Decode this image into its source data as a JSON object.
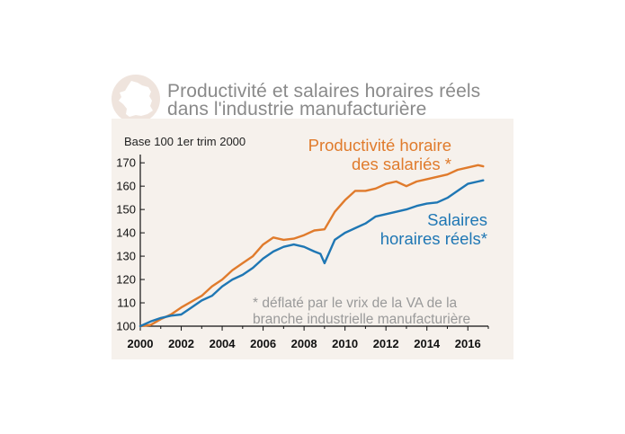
{
  "header": {
    "icon": "france-map-icon",
    "title_lines": [
      "Productivité et salaires horaires réels",
      "dans l'industrie manufacturière"
    ]
  },
  "chart_data": {
    "type": "line",
    "base_label": "Base 100 1er trim 2000",
    "xlim": [
      2000,
      2017
    ],
    "ylim": [
      100,
      172
    ],
    "x_ticks": [
      2000,
      2002,
      2004,
      2006,
      2008,
      2010,
      2012,
      2014,
      2016
    ],
    "y_ticks": [
      100,
      110,
      120,
      130,
      140,
      150,
      160,
      170
    ],
    "grid": false,
    "series": [
      {
        "name_lines": [
          "Productivité horaire",
          "des salariés *"
        ],
        "color": "#e07b2c",
        "x": [
          2000.0,
          2000.5,
          2001.0,
          2001.5,
          2002.0,
          2002.5,
          2003.0,
          2003.5,
          2004.0,
          2004.5,
          2005.0,
          2005.5,
          2006.0,
          2006.5,
          2007.0,
          2007.5,
          2008.0,
          2008.5,
          2009.0,
          2009.5,
          2010.0,
          2010.5,
          2011.0,
          2011.5,
          2012.0,
          2012.5,
          2013.0,
          2013.5,
          2014.0,
          2014.5,
          2015.0,
          2015.5,
          2016.0,
          2016.5,
          2016.75
        ],
        "y": [
          100,
          100.5,
          103,
          105,
          108,
          110.5,
          113,
          117,
          120,
          124,
          127,
          130,
          135,
          138,
          137,
          137.5,
          139,
          141,
          141.5,
          149,
          154,
          158,
          158,
          159,
          161,
          162,
          160,
          162,
          163,
          164,
          165,
          167,
          168,
          169,
          168.5
        ]
      },
      {
        "name_lines": [
          "Salaires",
          "horaires réels*"
        ],
        "color": "#1f77b4",
        "x": [
          2000.0,
          2000.5,
          2001.0,
          2001.5,
          2002.0,
          2002.5,
          2003.0,
          2003.5,
          2004.0,
          2004.5,
          2005.0,
          2005.5,
          2006.0,
          2006.5,
          2007.0,
          2007.5,
          2008.0,
          2008.5,
          2008.8,
          2009.0,
          2009.5,
          2010.0,
          2010.5,
          2011.0,
          2011.5,
          2012.0,
          2012.5,
          2013.0,
          2013.5,
          2014.0,
          2014.5,
          2015.0,
          2015.5,
          2016.0,
          2016.5,
          2016.75
        ],
        "y": [
          100,
          102,
          103.5,
          104.5,
          105,
          108,
          111,
          113,
          117,
          120,
          122,
          125,
          129,
          132,
          134,
          135,
          134,
          132,
          131,
          127,
          137,
          140,
          142,
          144,
          147,
          148,
          149,
          150,
          151.5,
          152.5,
          153,
          155,
          158,
          161,
          162,
          162.5
        ]
      }
    ],
    "note_lines": [
      "* déflaté par le vrix de la VA de la",
      "branche industrielle manufacturière"
    ]
  }
}
